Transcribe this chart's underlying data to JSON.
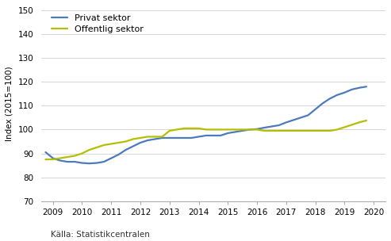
{
  "ylabel": "Index (2015=100)",
  "source_text": "Källa: Statistikcentralen",
  "ylim": [
    70,
    152
  ],
  "yticks": [
    70,
    80,
    90,
    100,
    110,
    120,
    130,
    140,
    150
  ],
  "xlim": [
    2008.6,
    2020.4
  ],
  "xticks": [
    2009,
    2010,
    2011,
    2012,
    2013,
    2014,
    2015,
    2016,
    2017,
    2018,
    2019,
    2020
  ],
  "privat_sektor": {
    "label": "Privat sektor",
    "color": "#4c7abf",
    "x": [
      2008.75,
      2009.0,
      2009.25,
      2009.5,
      2009.75,
      2010.0,
      2010.25,
      2010.5,
      2010.75,
      2011.0,
      2011.25,
      2011.5,
      2011.75,
      2012.0,
      2012.25,
      2012.5,
      2012.75,
      2013.0,
      2013.25,
      2013.5,
      2013.75,
      2014.0,
      2014.25,
      2014.5,
      2014.75,
      2015.0,
      2015.25,
      2015.5,
      2015.75,
      2016.0,
      2016.25,
      2016.5,
      2016.75,
      2017.0,
      2017.25,
      2017.5,
      2017.75,
      2018.0,
      2018.25,
      2018.5,
      2018.75,
      2019.0,
      2019.25,
      2019.5,
      2019.75
    ],
    "y": [
      90.5,
      88.0,
      87.0,
      86.5,
      86.5,
      86.0,
      85.8,
      86.0,
      86.5,
      88.0,
      89.5,
      91.5,
      93.0,
      94.5,
      95.5,
      96.0,
      96.5,
      96.5,
      96.5,
      96.5,
      96.5,
      97.0,
      97.5,
      97.5,
      97.5,
      98.5,
      99.0,
      99.5,
      100.0,
      100.2,
      100.8,
      101.3,
      101.8,
      103.0,
      104.0,
      105.0,
      106.0,
      108.5,
      111.0,
      113.0,
      114.5,
      115.5,
      116.8,
      117.5,
      118.0
    ]
  },
  "offentlig_sektor": {
    "label": "Offentlig sektor",
    "color": "#b5be00",
    "x": [
      2008.75,
      2009.0,
      2009.25,
      2009.5,
      2009.75,
      2010.0,
      2010.25,
      2010.5,
      2010.75,
      2011.0,
      2011.25,
      2011.5,
      2011.75,
      2012.0,
      2012.25,
      2012.5,
      2012.75,
      2013.0,
      2013.25,
      2013.5,
      2013.75,
      2014.0,
      2014.25,
      2014.5,
      2014.75,
      2015.0,
      2015.25,
      2015.5,
      2015.75,
      2016.0,
      2016.25,
      2016.5,
      2016.75,
      2017.0,
      2017.25,
      2017.5,
      2017.75,
      2018.0,
      2018.25,
      2018.5,
      2018.75,
      2019.0,
      2019.25,
      2019.5,
      2019.75
    ],
    "y": [
      87.5,
      87.5,
      88.0,
      88.5,
      89.0,
      90.0,
      91.5,
      92.5,
      93.5,
      94.0,
      94.5,
      95.0,
      96.0,
      96.5,
      97.0,
      97.0,
      97.0,
      99.5,
      100.0,
      100.5,
      100.5,
      100.5,
      100.0,
      100.0,
      100.0,
      100.0,
      100.0,
      100.0,
      100.0,
      100.0,
      99.5,
      99.5,
      99.5,
      99.5,
      99.5,
      99.5,
      99.5,
      99.5,
      99.5,
      99.5,
      100.0,
      101.0,
      102.0,
      103.0,
      103.8
    ]
  },
  "background_color": "#ffffff",
  "grid_color": "#d0d0d0",
  "line_width": 1.6,
  "tick_fontsize": 7.5,
  "ylabel_fontsize": 7.5,
  "legend_fontsize": 8.0
}
